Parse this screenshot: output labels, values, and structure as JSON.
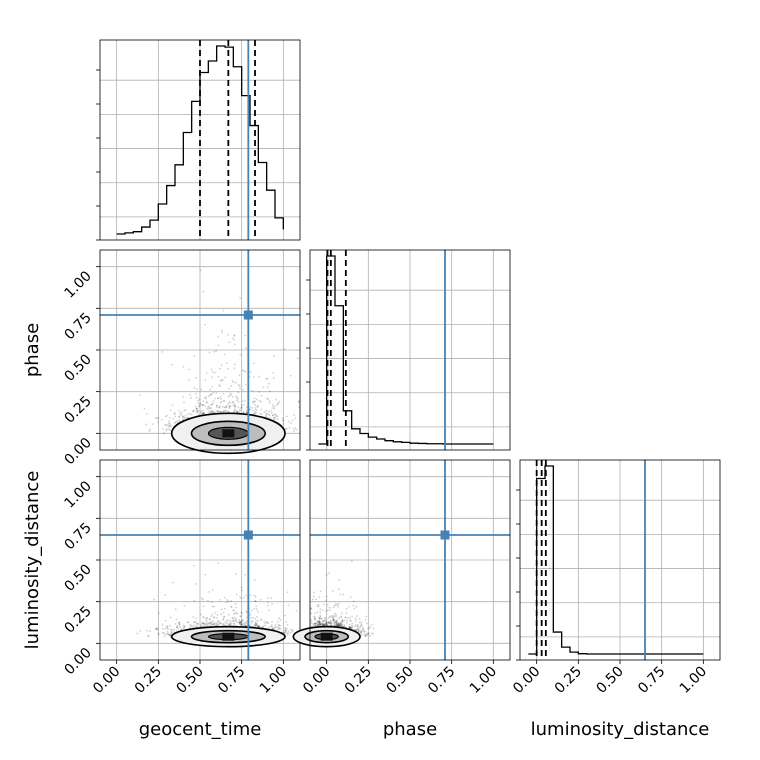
{
  "chart_data": {
    "type": "corner",
    "parameters": [
      "geocent_time",
      "phase",
      "luminosity_distance"
    ],
    "range": [
      -0.1,
      1.1
    ],
    "ticks": [
      "0.00",
      "0.25",
      "0.50",
      "0.75",
      "1.00"
    ],
    "tick_values": [
      0.0,
      0.25,
      0.5,
      0.75,
      1.0
    ],
    "grid": true,
    "colors": {
      "hist": "#000000",
      "truth": "#4682b4",
      "quantile": "#000000",
      "grid": "#b0b0b0"
    },
    "truths": {
      "geocent_time": 0.79,
      "phase": 0.71,
      "luminosity_distance": 0.65
    },
    "marginals": {
      "geocent_time": {
        "bin_edges": [
          0.0,
          0.05,
          0.1,
          0.15,
          0.2,
          0.25,
          0.3,
          0.35,
          0.4,
          0.45,
          0.5,
          0.55,
          0.6,
          0.65,
          0.7,
          0.75,
          0.8,
          0.85,
          0.9,
          0.95,
          1.0
        ],
        "counts": [
          0,
          1,
          2,
          6,
          12,
          26,
          42,
          60,
          88,
          115,
          140,
          150,
          163,
          162,
          145,
          120,
          94,
          62,
          38,
          14,
          4
        ],
        "quantiles": [
          0.5,
          0.67,
          0.83
        ]
      },
      "phase": {
        "bin_edges": [
          -0.05,
          0.0,
          0.05,
          0.1,
          0.15,
          0.2,
          0.25,
          0.3,
          0.35,
          0.4,
          0.45,
          0.5,
          0.55,
          0.6,
          0.65,
          0.7,
          0.75,
          0.8,
          0.85,
          0.9,
          0.95,
          1.0
        ],
        "counts": [
          0,
          680,
          500,
          120,
          55,
          38,
          25,
          18,
          12,
          8,
          6,
          3,
          2,
          1,
          1,
          0,
          0,
          0,
          0,
          0,
          0
        ],
        "quantiles": [
          0.005,
          0.025,
          0.115
        ]
      },
      "luminosity_distance": {
        "bin_edges": [
          -0.05,
          0.0,
          0.05,
          0.1,
          0.15,
          0.2,
          0.25,
          0.3,
          0.35,
          0.4,
          0.45,
          0.5,
          0.55,
          0.6,
          0.65,
          0.7,
          0.75,
          0.8,
          0.85,
          0.9,
          0.95,
          1.0
        ],
        "counts": [
          0,
          560,
          600,
          70,
          22,
          6,
          1,
          0,
          0,
          0,
          0,
          0,
          0,
          0,
          0,
          0,
          0,
          0,
          0,
          0,
          0
        ],
        "quantiles": [
          0.0,
          0.03,
          0.055
        ]
      }
    },
    "joint": [
      {
        "x": "geocent_time",
        "y": "phase",
        "x_center": 0.67,
        "x_sd": 0.17,
        "y_center": 0.0,
        "y_scale": 0.08,
        "contours": [
          [
            0.5,
            0.82,
            0.0,
            0.0
          ]
        ]
      },
      {
        "x": "geocent_time",
        "y": "luminosity_distance",
        "x_center": 0.67,
        "x_sd": 0.17,
        "y_center": 0.04,
        "y_scale": 0.04
      },
      {
        "x": "phase",
        "y": "luminosity_distance",
        "x_center": 0.0,
        "x_sd": 0.1,
        "y_center": 0.04,
        "y_scale": 0.04
      }
    ]
  }
}
